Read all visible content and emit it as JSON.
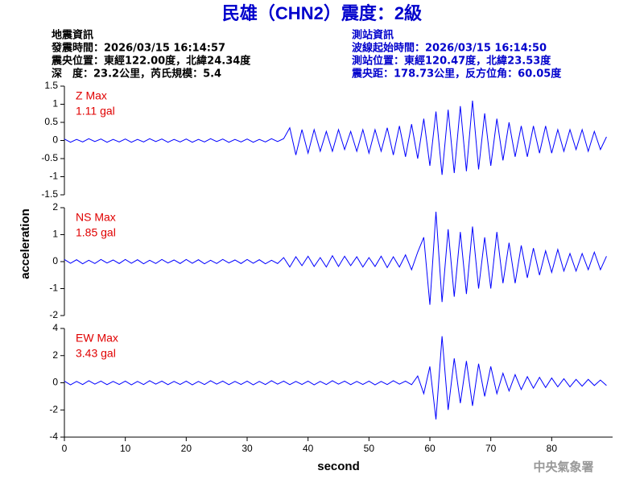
{
  "header": {
    "title": "民雄（CHN2）震度：2級",
    "left": [
      "地震資訊",
      "發震時間：2026/03/15 16:14:57",
      "震央位置：東經122.00度，北緯24.34度",
      "深　度：23.2公里，芮氏規模：5.4"
    ],
    "right": [
      "測站資訊",
      "波線起始時間：2026/03/15 16:14:50",
      "測站位置：東經120.47度，北緯23.53度",
      "震央距：178.73公里，反方位角：60.05度"
    ]
  },
  "footer": "中央氣象署",
  "chart_data": [
    {
      "type": "line",
      "label": "Z Max",
      "max_label": "1.11 gal",
      "color": "#0000ff",
      "label_color": "#e00000",
      "ylim": [
        -1.5,
        1.5
      ],
      "yticks": [
        -1.5,
        -1,
        -0.5,
        0,
        0.5,
        1,
        1.5
      ],
      "xlim": [
        0,
        90
      ],
      "x": [
        0,
        1,
        2,
        3,
        4,
        5,
        6,
        7,
        8,
        9,
        10,
        11,
        12,
        13,
        14,
        15,
        16,
        17,
        18,
        19,
        20,
        21,
        22,
        23,
        24,
        25,
        26,
        27,
        28,
        29,
        30,
        31,
        32,
        33,
        34,
        35,
        36,
        37,
        38,
        39,
        40,
        41,
        42,
        43,
        44,
        45,
        46,
        47,
        48,
        49,
        50,
        51,
        52,
        53,
        54,
        55,
        56,
        57,
        58,
        59,
        60,
        61,
        62,
        63,
        64,
        65,
        66,
        67,
        68,
        69,
        70,
        71,
        72,
        73,
        74,
        75,
        76,
        77,
        78,
        79,
        80,
        81,
        82,
        83,
        84,
        85,
        86,
        87,
        88,
        89
      ],
      "values": [
        0.04,
        -0.05,
        0.03,
        -0.04,
        0.05,
        -0.03,
        0.04,
        -0.05,
        0.03,
        -0.04,
        0.04,
        -0.05,
        0.03,
        -0.04,
        0.05,
        -0.03,
        0.04,
        -0.05,
        0.03,
        -0.04,
        0.04,
        -0.05,
        0.03,
        -0.04,
        0.05,
        -0.03,
        0.04,
        -0.05,
        0.03,
        -0.04,
        0.04,
        -0.05,
        0.03,
        -0.04,
        0.05,
        -0.03,
        0.05,
        0.35,
        -0.4,
        0.3,
        -0.35,
        0.3,
        -0.3,
        0.25,
        -0.3,
        0.3,
        -0.25,
        0.25,
        -0.3,
        0.3,
        -0.35,
        0.3,
        -0.3,
        0.35,
        -0.4,
        0.4,
        -0.45,
        0.45,
        -0.5,
        0.6,
        -0.7,
        0.8,
        -0.95,
        0.85,
        -0.9,
        0.95,
        -0.85,
        1.1,
        -0.8,
        0.75,
        -0.7,
        0.6,
        -0.55,
        0.5,
        -0.45,
        0.4,
        -0.45,
        0.4,
        -0.35,
        0.4,
        -0.35,
        0.3,
        -0.3,
        0.3,
        -0.25,
        0.3,
        -0.3,
        0.25,
        -0.25,
        0.1
      ]
    },
    {
      "type": "line",
      "label": "NS Max",
      "max_label": "1.85 gal",
      "color": "#0000ff",
      "label_color": "#e00000",
      "ylim": [
        -2,
        2
      ],
      "yticks": [
        -2,
        -1,
        0,
        1,
        2
      ],
      "xlim": [
        0,
        90
      ],
      "ylabel": "acceleration",
      "x": [
        0,
        1,
        2,
        3,
        4,
        5,
        6,
        7,
        8,
        9,
        10,
        11,
        12,
        13,
        14,
        15,
        16,
        17,
        18,
        19,
        20,
        21,
        22,
        23,
        24,
        25,
        26,
        27,
        28,
        29,
        30,
        31,
        32,
        33,
        34,
        35,
        36,
        37,
        38,
        39,
        40,
        41,
        42,
        43,
        44,
        45,
        46,
        47,
        48,
        49,
        50,
        51,
        52,
        53,
        54,
        55,
        56,
        57,
        58,
        59,
        60,
        61,
        62,
        63,
        64,
        65,
        66,
        67,
        68,
        69,
        70,
        71,
        72,
        73,
        74,
        75,
        76,
        77,
        78,
        79,
        80,
        81,
        82,
        83,
        84,
        85,
        86,
        87,
        88,
        89
      ],
      "values": [
        0.08,
        -0.06,
        0.07,
        -0.08,
        0.05,
        -0.07,
        0.08,
        -0.05,
        0.06,
        -0.07,
        0.08,
        -0.06,
        0.07,
        -0.08,
        0.05,
        -0.07,
        0.08,
        -0.05,
        0.06,
        -0.07,
        0.08,
        -0.06,
        0.07,
        -0.08,
        0.05,
        -0.07,
        0.08,
        -0.05,
        0.06,
        -0.07,
        0.08,
        -0.06,
        0.07,
        -0.08,
        0.05,
        -0.07,
        0.15,
        -0.2,
        0.18,
        -0.15,
        0.2,
        -0.18,
        0.15,
        -0.2,
        0.22,
        -0.18,
        0.2,
        -0.15,
        0.18,
        -0.2,
        0.15,
        -0.18,
        0.2,
        -0.22,
        0.18,
        -0.2,
        0.25,
        -0.3,
        0.35,
        0.9,
        -1.6,
        1.85,
        -1.5,
        1.2,
        -1.3,
        1.1,
        -1.2,
        1.3,
        -1.0,
        0.9,
        -1.0,
        1.1,
        -0.8,
        0.7,
        -0.8,
        0.6,
        -0.6,
        0.5,
        -0.5,
        0.4,
        -0.4,
        0.45,
        -0.35,
        0.3,
        -0.35,
        0.3,
        -0.3,
        0.35,
        -0.3,
        0.2
      ]
    },
    {
      "type": "line",
      "label": "EW Max",
      "max_label": "3.43 gal",
      "color": "#0000ff",
      "label_color": "#e00000",
      "ylim": [
        -4,
        4
      ],
      "yticks": [
        -4,
        -2,
        0,
        2,
        4
      ],
      "xlim": [
        0,
        90
      ],
      "xticks": [
        0,
        10,
        20,
        30,
        40,
        50,
        60,
        70,
        80
      ],
      "xlabel": "second",
      "x": [
        0,
        1,
        2,
        3,
        4,
        5,
        6,
        7,
        8,
        9,
        10,
        11,
        12,
        13,
        14,
        15,
        16,
        17,
        18,
        19,
        20,
        21,
        22,
        23,
        24,
        25,
        26,
        27,
        28,
        29,
        30,
        31,
        32,
        33,
        34,
        35,
        36,
        37,
        38,
        39,
        40,
        41,
        42,
        43,
        44,
        45,
        46,
        47,
        48,
        49,
        50,
        51,
        52,
        53,
        54,
        55,
        56,
        57,
        58,
        59,
        60,
        61,
        62,
        63,
        64,
        65,
        66,
        67,
        68,
        69,
        70,
        71,
        72,
        73,
        74,
        75,
        76,
        77,
        78,
        79,
        80,
        81,
        82,
        83,
        84,
        85,
        86,
        87,
        88,
        89
      ],
      "values": [
        0.12,
        -0.15,
        0.1,
        -0.13,
        0.15,
        -0.1,
        0.12,
        -0.14,
        0.1,
        -0.12,
        0.12,
        -0.15,
        0.1,
        -0.13,
        0.15,
        -0.1,
        0.12,
        -0.14,
        0.1,
        -0.12,
        0.12,
        -0.15,
        0.1,
        -0.13,
        0.15,
        -0.1,
        0.12,
        -0.14,
        0.1,
        -0.12,
        0.12,
        -0.15,
        0.1,
        -0.13,
        0.15,
        -0.1,
        0.12,
        -0.14,
        0.1,
        -0.12,
        0.12,
        -0.15,
        0.1,
        -0.13,
        0.15,
        -0.1,
        0.12,
        -0.14,
        0.1,
        -0.12,
        0.12,
        -0.15,
        0.1,
        -0.13,
        0.15,
        -0.1,
        0.12,
        -0.14,
        0.5,
        -0.8,
        1.2,
        -2.7,
        3.43,
        -2.0,
        1.8,
        -1.5,
        1.6,
        -1.7,
        1.4,
        -1.0,
        1.2,
        -0.8,
        0.7,
        -0.6,
        0.6,
        -0.5,
        0.45,
        -0.4,
        0.4,
        -0.35,
        0.35,
        -0.3,
        0.3,
        -0.3,
        0.25,
        -0.25,
        0.25,
        -0.2,
        0.2,
        -0.2
      ]
    }
  ]
}
